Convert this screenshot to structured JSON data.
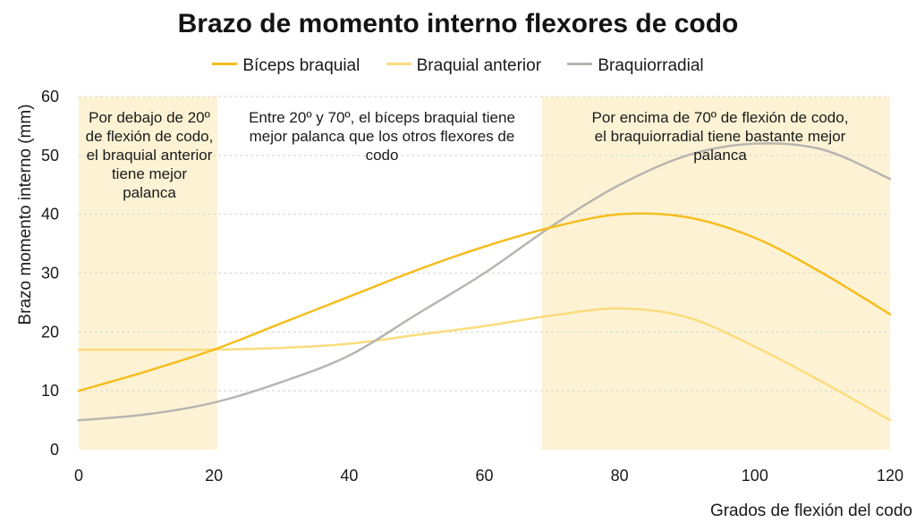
{
  "chart_data": {
    "type": "line",
    "title": "Brazo de momento interno flexores de codo",
    "xlabel": "Grados de flexión del codo",
    "ylabel": "Brazo momento interno (mm)",
    "xlim": [
      0,
      120
    ],
    "ylim": [
      0,
      60
    ],
    "xticks": [
      0,
      20,
      40,
      60,
      80,
      100,
      120
    ],
    "yticks": [
      0,
      10,
      20,
      30,
      40,
      50,
      60
    ],
    "grid": "horizontal dashed",
    "legend_position": "top",
    "series": [
      {
        "name": "Bíceps braquial",
        "color": "#f5bd1f",
        "x": [
          0,
          10,
          20,
          30,
          40,
          50,
          60,
          70,
          80,
          90,
          100,
          110,
          120
        ],
        "y": [
          10,
          13.3,
          17,
          21.5,
          26,
          30.5,
          34.5,
          37.8,
          40,
          39.5,
          36,
          30,
          23
        ]
      },
      {
        "name": "Braquial anterior",
        "color": "#fbdc7e",
        "x": [
          0,
          10,
          20,
          30,
          40,
          50,
          60,
          70,
          80,
          90,
          100,
          110,
          120
        ],
        "y": [
          17,
          17,
          17,
          17.3,
          18,
          19.5,
          21,
          22.8,
          24,
          22.5,
          17.5,
          11.5,
          5
        ]
      },
      {
        "name": "Braquiorradial",
        "color": "#b8b5b0",
        "x": [
          0,
          10,
          20,
          30,
          40,
          50,
          60,
          70,
          80,
          90,
          100,
          110,
          120
        ],
        "y": [
          5,
          6,
          8,
          11.5,
          16,
          23,
          30,
          38,
          45,
          50,
          52,
          51,
          46
        ]
      }
    ],
    "shaded_regions": [
      {
        "from": 0,
        "to": 20.5,
        "color": "#fdf3d4"
      },
      {
        "from": 68.5,
        "to": 120,
        "color": "#fdf3d4"
      }
    ],
    "annotations": [
      "Por debajo de 20º de flexión de codo, el braquial anterior tiene mejor palanca",
      "Entre 20º y 70º, el bíceps braquial tiene mejor palanca que los otros flexores de codo",
      "Por encima de 70º de flexión de codo, el braquiorradial tiene bastante mejor palanca"
    ]
  }
}
